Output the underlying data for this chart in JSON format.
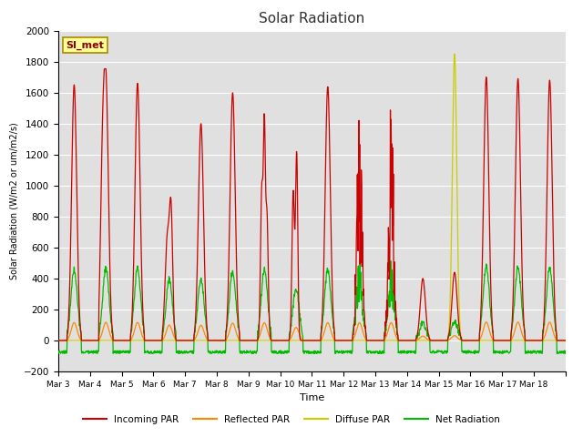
{
  "title": "Solar Radiation",
  "ylabel": "Solar Radiation (W/m2 or um/m2/s)",
  "xlabel": "Time",
  "ylim": [
    -200,
    2000
  ],
  "bg_color": "#e0e0e0",
  "grid_color": "white",
  "annotation_text": "SI_met",
  "annotation_bg": "#ffff99",
  "annotation_border": "#aa8800",
  "tick_labels": [
    "Mar 3",
    "Mar 4",
    "Mar 5",
    "Mar 6",
    "Mar 7",
    "Mar 8",
    "Mar 9",
    "Mar 10",
    "Mar 11",
    "Mar 12",
    "Mar 13",
    "Mar 14",
    "Mar 15",
    "Mar 16",
    "Mar 17",
    "Mar 18"
  ],
  "line_colors": {
    "incoming": "#cc0000",
    "reflected": "#ff8800",
    "diffuse": "#cccc00",
    "net": "#00bb00"
  },
  "legend_labels": [
    "Incoming PAR",
    "Reflected PAR",
    "Diffuse PAR",
    "Net Radiation"
  ]
}
